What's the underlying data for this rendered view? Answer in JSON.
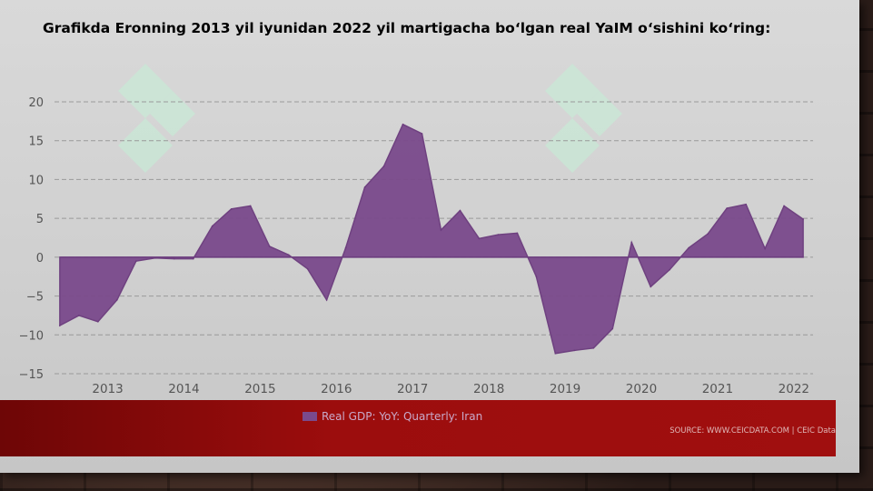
{
  "page": {
    "title": "Grafikda Eronning 2013 yil iyunidan 2022 yil martigacha bo‘lgan real YaIM o‘sishini ko‘ring:"
  },
  "colors": {
    "area_fill": "#7a4a8c",
    "area_stroke": "#6a3a7c",
    "footer": "#9c0d0d",
    "watermark": "#c8e8d6"
  },
  "chart_data": {
    "type": "area",
    "title": "",
    "xlabel": "",
    "ylabel": "",
    "ylim": [
      -15,
      20
    ],
    "xlim": [
      2012.35,
      2022.3
    ],
    "yticks": [
      20,
      15,
      10,
      5,
      0,
      -5,
      -10,
      -15
    ],
    "ytick_labels": [
      "20",
      "15",
      "10",
      "5",
      "0",
      "−5",
      "−10",
      "−15"
    ],
    "xticks": [
      2013,
      2014,
      2015,
      2016,
      2017,
      2018,
      2019,
      2020,
      2021,
      2022
    ],
    "xtick_labels": [
      "2013",
      "2014",
      "2015",
      "2016",
      "2017",
      "2018",
      "2019",
      "2020",
      "2021",
      "2022"
    ],
    "grid": "horizontal-dashed",
    "legend_placement": "bottom-center",
    "series": [
      {
        "name": "Real GDP: YoY: Quarterly: Iran",
        "x": [
          2012.42,
          2012.67,
          2012.92,
          2013.17,
          2013.42,
          2013.67,
          2013.92,
          2014.17,
          2014.42,
          2014.67,
          2014.92,
          2015.17,
          2015.42,
          2015.67,
          2015.92,
          2016.17,
          2016.42,
          2016.67,
          2016.92,
          2017.17,
          2017.42,
          2017.67,
          2017.92,
          2018.17,
          2018.42,
          2018.67,
          2018.92,
          2019.17,
          2019.42,
          2019.67,
          2019.92,
          2020.17,
          2020.42,
          2020.67,
          2020.92,
          2021.17,
          2021.42,
          2021.67,
          2021.92,
          2022.17
        ],
        "values": [
          -8.8,
          -7.5,
          -8.3,
          -5.5,
          -0.5,
          -0.1,
          -0.2,
          -0.2,
          4.0,
          6.2,
          6.6,
          1.4,
          0.3,
          -1.5,
          -5.5,
          1.2,
          9.0,
          11.7,
          17.1,
          15.9,
          3.5,
          6.0,
          2.4,
          2.9,
          3.1,
          -2.5,
          -12.4,
          -12.0,
          -11.7,
          -9.2,
          1.9,
          -3.8,
          -1.6,
          1.2,
          3.0,
          6.3,
          6.8,
          1.1,
          6.6,
          4.9
        ]
      }
    ]
  },
  "legend": {
    "label": "Real GDP: YoY: Quarterly: Iran"
  },
  "footer": {
    "source": "SOURCE: WWW.CEICDATA.COM | CEIC Data"
  }
}
